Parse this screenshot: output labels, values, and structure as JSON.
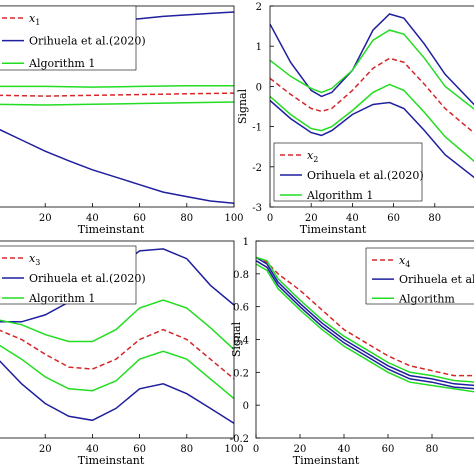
{
  "colors": {
    "estimate": "#d62728",
    "orihuela": "#1f1f9f",
    "algorithm": "#22dd22",
    "axis": "#000000"
  },
  "chart_data": [
    {
      "type": "line",
      "panel": "top-left",
      "xlabel": "Timeinstant",
      "ylabel": "",
      "xlim": [
        0,
        100
      ],
      "ylim": [
        -1.6,
        1.1
      ],
      "xticks": [
        20,
        40,
        60,
        80,
        100
      ],
      "yticks": [],
      "legend": [
        "x_1",
        "Orihuela et al.(2020)",
        "Algorithm 1"
      ],
      "legend_position": "top-left",
      "series": [
        {
          "name": "x_1",
          "style": "dashed",
          "color": "estimate",
          "x": [
            0,
            20,
            40,
            60,
            80,
            100
          ],
          "y": [
            -0.1,
            -0.11,
            -0.1,
            -0.09,
            -0.08,
            -0.07
          ]
        },
        {
          "name": "Orihuela et al.(2020)",
          "color": "orihuela",
          "x": [
            0,
            10,
            20,
            30,
            40,
            50,
            60,
            70,
            80,
            90,
            100
          ],
          "y": [
            0.55,
            0.62,
            0.7,
            0.78,
            0.85,
            0.9,
            0.93,
            0.96,
            0.98,
            1.0,
            1.02
          ]
        },
        {
          "name": "Orihuela et al.(2020)",
          "color": "orihuela",
          "x": [
            0,
            10,
            20,
            30,
            40,
            50,
            60,
            70,
            80,
            90,
            100
          ],
          "y": [
            -0.55,
            -0.7,
            -0.85,
            -0.98,
            -1.1,
            -1.2,
            -1.3,
            -1.4,
            -1.46,
            -1.52,
            -1.55
          ]
        },
        {
          "name": "Algorithm 1",
          "color": "algorithm",
          "x": [
            0,
            20,
            40,
            60,
            80,
            100
          ],
          "y": [
            0.02,
            0.02,
            0.01,
            0.02,
            0.03,
            0.03
          ]
        },
        {
          "name": "Algorithm 1",
          "color": "algorithm",
          "x": [
            0,
            20,
            40,
            60,
            80,
            100
          ],
          "y": [
            -0.22,
            -0.23,
            -0.22,
            -0.21,
            -0.2,
            -0.19
          ]
        }
      ]
    },
    {
      "type": "line",
      "panel": "top-right",
      "xlabel": "Timeinstant",
      "ylabel": "Signal",
      "xlim": [
        0,
        100
      ],
      "ylim": [
        -3,
        2
      ],
      "xticks": [
        0,
        20,
        40,
        60,
        80
      ],
      "yticks": [
        -3,
        -2,
        -1,
        0,
        1,
        2
      ],
      "legend": [
        "x_2",
        "Orihuela et al.(2020)",
        "Algorithm 1"
      ],
      "legend_position": "bottom-left",
      "series": [
        {
          "name": "x_2",
          "style": "dashed",
          "color": "estimate",
          "x": [
            0,
            10,
            20,
            25,
            30,
            40,
            50,
            58,
            65,
            75,
            85,
            100
          ],
          "y": [
            0.2,
            -0.2,
            -0.55,
            -0.62,
            -0.55,
            -0.1,
            0.45,
            0.7,
            0.6,
            0.05,
            -0.55,
            -1.2
          ]
        },
        {
          "name": "Orihuela et al.(2020)",
          "color": "orihuela",
          "x": [
            0,
            10,
            20,
            25,
            30,
            40,
            50,
            58,
            65,
            75,
            85,
            100
          ],
          "y": [
            1.55,
            0.6,
            -0.1,
            -0.25,
            -0.15,
            0.4,
            1.4,
            1.8,
            1.7,
            1.05,
            0.3,
            -0.5
          ]
        },
        {
          "name": "Orihuela et al.(2020)",
          "color": "orihuela",
          "x": [
            0,
            10,
            20,
            25,
            30,
            40,
            50,
            58,
            65,
            75,
            85,
            100
          ],
          "y": [
            -0.35,
            -0.8,
            -1.15,
            -1.22,
            -1.1,
            -0.7,
            -0.45,
            -0.4,
            -0.55,
            -1.1,
            -1.7,
            -2.3
          ]
        },
        {
          "name": "Algorithm 1",
          "color": "algorithm",
          "x": [
            0,
            10,
            20,
            25,
            30,
            40,
            50,
            58,
            65,
            75,
            85,
            100
          ],
          "y": [
            0.65,
            0.25,
            -0.05,
            -0.15,
            -0.05,
            0.4,
            1.15,
            1.4,
            1.3,
            0.7,
            0.0,
            -0.6
          ]
        },
        {
          "name": "Algorithm 1",
          "color": "algorithm",
          "x": [
            0,
            10,
            20,
            25,
            30,
            40,
            50,
            58,
            65,
            75,
            85,
            100
          ],
          "y": [
            -0.25,
            -0.7,
            -1.05,
            -1.1,
            -1.0,
            -0.6,
            -0.15,
            0.05,
            -0.1,
            -0.65,
            -1.25,
            -1.9
          ]
        }
      ]
    },
    {
      "type": "line",
      "panel": "bottom-left",
      "xlabel": "Timeinstant",
      "ylabel": "",
      "xlim": [
        0,
        100
      ],
      "ylim": [
        -0.9,
        1.1
      ],
      "xticks": [
        20,
        40,
        60,
        80,
        100
      ],
      "yticks": [],
      "legend": [
        "x_3",
        "Orihuela et al.(2020)",
        "Algorithm 1"
      ],
      "legend_position": "top-left",
      "series": [
        {
          "name": "x_3",
          "style": "dashed",
          "color": "estimate",
          "x": [
            0,
            10,
            20,
            30,
            40,
            50,
            60,
            70,
            80,
            90,
            100
          ],
          "y": [
            0.2,
            0.1,
            -0.05,
            -0.18,
            -0.2,
            -0.1,
            0.1,
            0.2,
            0.1,
            -0.1,
            -0.3
          ]
        },
        {
          "name": "Orihuela et al.(2020)",
          "color": "orihuela",
          "x": [
            0,
            10,
            20,
            30,
            40,
            50,
            60,
            70,
            80,
            90,
            100
          ],
          "y": [
            0.28,
            0.28,
            0.35,
            0.48,
            0.62,
            0.82,
            1.0,
            1.02,
            0.92,
            0.65,
            0.45
          ]
        },
        {
          "name": "Orihuela et al.(2020)",
          "color": "orihuela",
          "x": [
            0,
            10,
            20,
            30,
            40,
            50,
            60,
            70,
            80,
            90,
            100
          ],
          "y": [
            -0.1,
            -0.35,
            -0.55,
            -0.68,
            -0.72,
            -0.6,
            -0.4,
            -0.35,
            -0.45,
            -0.6,
            -0.75
          ]
        },
        {
          "name": "Algorithm 1",
          "color": "algorithm",
          "x": [
            0,
            10,
            20,
            30,
            40,
            50,
            60,
            70,
            80,
            90,
            100
          ],
          "y": [
            0.3,
            0.25,
            0.15,
            0.08,
            0.08,
            0.2,
            0.42,
            0.5,
            0.42,
            0.22,
            0.0
          ]
        },
        {
          "name": "Algorithm 1",
          "color": "algorithm",
          "x": [
            0,
            10,
            20,
            30,
            40,
            50,
            60,
            70,
            80,
            90,
            100
          ],
          "y": [
            0.05,
            -0.1,
            -0.28,
            -0.4,
            -0.42,
            -0.32,
            -0.1,
            -0.02,
            -0.1,
            -0.3,
            -0.5
          ]
        }
      ]
    },
    {
      "type": "line",
      "panel": "bottom-right",
      "xlabel": "Timeinstant",
      "ylabel": "Signal",
      "xlim": [
        0,
        100
      ],
      "ylim": [
        -0.2,
        1.0
      ],
      "xticks": [
        0,
        20,
        40,
        60,
        80
      ],
      "yticks": [
        -0.2,
        0,
        0.2,
        0.4,
        0.6,
        0.8,
        1.0
      ],
      "legend": [
        "x_4",
        "Orihuela et al.",
        "Algorithm"
      ],
      "legend_position": "top-right",
      "series": [
        {
          "name": "x_4",
          "style": "dashed",
          "color": "estimate",
          "x": [
            0,
            5,
            10,
            20,
            30,
            40,
            50,
            60,
            70,
            80,
            90,
            100
          ],
          "y": [
            0.9,
            0.87,
            0.8,
            0.7,
            0.58,
            0.46,
            0.38,
            0.3,
            0.24,
            0.21,
            0.18,
            0.18
          ]
        },
        {
          "name": "Orihuela et al.(2020)",
          "color": "orihuela",
          "x": [
            0,
            5,
            10,
            20,
            30,
            40,
            50,
            60,
            70,
            80,
            90,
            100
          ],
          "y": [
            0.9,
            0.86,
            0.75,
            0.62,
            0.5,
            0.4,
            0.32,
            0.24,
            0.18,
            0.16,
            0.13,
            0.12
          ]
        },
        {
          "name": "Orihuela et al.(2020)",
          "color": "orihuela",
          "x": [
            0,
            5,
            10,
            20,
            30,
            40,
            50,
            60,
            70,
            80,
            90,
            100
          ],
          "y": [
            0.88,
            0.84,
            0.73,
            0.6,
            0.48,
            0.38,
            0.3,
            0.22,
            0.16,
            0.14,
            0.11,
            0.1
          ]
        },
        {
          "name": "Algorithm 1",
          "color": "algorithm",
          "x": [
            0,
            5,
            10,
            20,
            30,
            40,
            50,
            60,
            70,
            80,
            90,
            100
          ],
          "y": [
            0.9,
            0.88,
            0.77,
            0.64,
            0.52,
            0.42,
            0.34,
            0.26,
            0.2,
            0.18,
            0.15,
            0.14
          ]
        },
        {
          "name": "Algorithm 1",
          "color": "algorithm",
          "x": [
            0,
            5,
            10,
            20,
            30,
            40,
            50,
            60,
            70,
            80,
            90,
            100
          ],
          "y": [
            0.86,
            0.82,
            0.71,
            0.58,
            0.46,
            0.36,
            0.28,
            0.2,
            0.14,
            0.12,
            0.1,
            0.08
          ]
        }
      ]
    }
  ]
}
